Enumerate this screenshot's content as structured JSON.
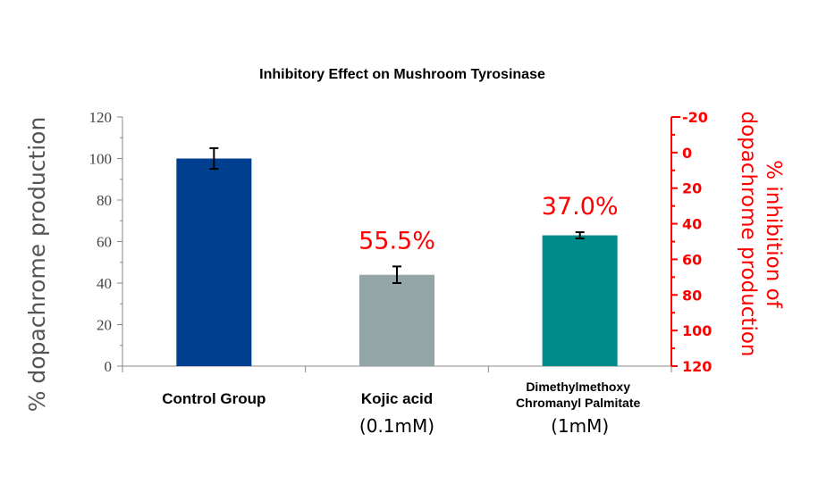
{
  "chart_data": {
    "type": "bar",
    "title": "Inhibitory Effect on Mushroom Tyrosinase",
    "ylabel": "% dopachrome production",
    "y2label_lines": [
      "% inhibition of",
      "dopachrome production"
    ],
    "ylim": [
      0,
      120
    ],
    "y2lim": [
      -20,
      120
    ],
    "y2_inverted": true,
    "y_ticks": [
      "0",
      "20",
      "40",
      "60",
      "80",
      "100",
      "120"
    ],
    "y2_ticks": [
      "-20",
      "0",
      "20",
      "40",
      "60",
      "80",
      "100",
      "120"
    ],
    "categories": [
      {
        "lines": [
          "Control Group"
        ],
        "note": ""
      },
      {
        "lines": [
          "Kojic acid"
        ],
        "note": "(0.1mM)"
      },
      {
        "lines": [
          "Dimethylmethoxy",
          "Chromanyl Palmitate"
        ],
        "note": "(1mM)"
      }
    ],
    "values": [
      100,
      44,
      63
    ],
    "errors": [
      5,
      4,
      1.5
    ],
    "inhibition_labels": [
      "",
      "55.5%",
      "37.0%"
    ],
    "colors": [
      "#003f8f",
      "#93a5a6",
      "#008b8b"
    ],
    "grid": false
  }
}
